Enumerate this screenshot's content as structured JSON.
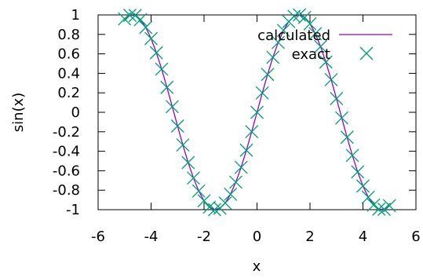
{
  "chart_data": {
    "type": "line",
    "title": "",
    "xlabel": "x",
    "ylabel": "sin(x)",
    "xlim": [
      -6,
      6
    ],
    "ylim": [
      -1,
      1
    ],
    "x_ticks": [
      "-6",
      "-4",
      "-2",
      "0",
      "2",
      "4",
      "6"
    ],
    "y_ticks": [
      "1",
      "0.8",
      "0.6",
      "0.4",
      "0.2",
      "0",
      "-0.2",
      "-0.4",
      "-0.6",
      "-0.8",
      "-1"
    ],
    "grid": false,
    "legend_position": "top-right",
    "series": [
      {
        "name": "calculated",
        "style": "line",
        "color": "#9400d3",
        "x": [
          -5.0,
          -4.8,
          -4.6,
          -4.4,
          -4.2,
          -4.0,
          -3.8,
          -3.6,
          -3.4,
          -3.2,
          -3.0,
          -2.8,
          -2.6,
          -2.4,
          -2.2,
          -2.0,
          -1.8,
          -1.6,
          -1.4,
          -1.2,
          -1.0,
          -0.8,
          -0.6,
          -0.4,
          -0.2,
          0.0,
          0.2,
          0.4,
          0.6,
          0.8,
          1.0,
          1.2,
          1.4,
          1.6,
          1.8,
          2.0,
          2.2,
          2.4,
          2.6,
          2.8,
          3.0,
          3.2,
          3.4,
          3.6,
          3.8,
          4.0,
          4.2,
          4.4,
          4.6,
          4.8,
          5.0
        ],
        "y": [
          0.959,
          0.996,
          0.994,
          0.952,
          0.872,
          0.757,
          0.612,
          0.443,
          0.256,
          0.058,
          -0.141,
          -0.335,
          -0.516,
          -0.675,
          -0.808,
          -0.909,
          -0.974,
          -1.0,
          -0.985,
          -0.932,
          -0.841,
          -0.717,
          -0.565,
          -0.389,
          -0.199,
          0.0,
          0.199,
          0.389,
          0.565,
          0.717,
          0.841,
          0.932,
          0.985,
          1.0,
          0.974,
          0.909,
          0.808,
          0.675,
          0.516,
          0.335,
          0.141,
          -0.058,
          -0.256,
          -0.443,
          -0.612,
          -0.757,
          -0.872,
          -0.952,
          -0.994,
          -0.996,
          -0.959
        ]
      },
      {
        "name": "exact",
        "style": "points",
        "marker": "x",
        "color": "#009e73",
        "x": [
          -5.0,
          -4.8,
          -4.6,
          -4.4,
          -4.2,
          -4.0,
          -3.8,
          -3.6,
          -3.4,
          -3.2,
          -3.0,
          -2.8,
          -2.6,
          -2.4,
          -2.2,
          -2.0,
          -1.8,
          -1.6,
          -1.4,
          -1.2,
          -1.0,
          -0.8,
          -0.6,
          -0.4,
          -0.2,
          0.0,
          0.2,
          0.4,
          0.6,
          0.8,
          1.0,
          1.2,
          1.4,
          1.6,
          1.8,
          2.0,
          2.2,
          2.4,
          2.6,
          2.8,
          3.0,
          3.2,
          3.4,
          3.6,
          3.8,
          4.0,
          4.2,
          4.4,
          4.6,
          4.8,
          5.0
        ],
        "y": [
          0.959,
          0.996,
          0.994,
          0.952,
          0.872,
          0.757,
          0.612,
          0.443,
          0.256,
          0.058,
          -0.141,
          -0.335,
          -0.516,
          -0.675,
          -0.808,
          -0.909,
          -0.974,
          -1.0,
          -0.985,
          -0.932,
          -0.841,
          -0.717,
          -0.565,
          -0.389,
          -0.199,
          0.0,
          0.199,
          0.389,
          0.565,
          0.717,
          0.841,
          0.932,
          0.985,
          1.0,
          0.974,
          0.909,
          0.808,
          0.675,
          0.516,
          0.335,
          0.141,
          -0.058,
          -0.256,
          -0.443,
          -0.612,
          -0.757,
          -0.872,
          -0.952,
          -0.994,
          -0.996,
          -0.959
        ]
      }
    ]
  }
}
